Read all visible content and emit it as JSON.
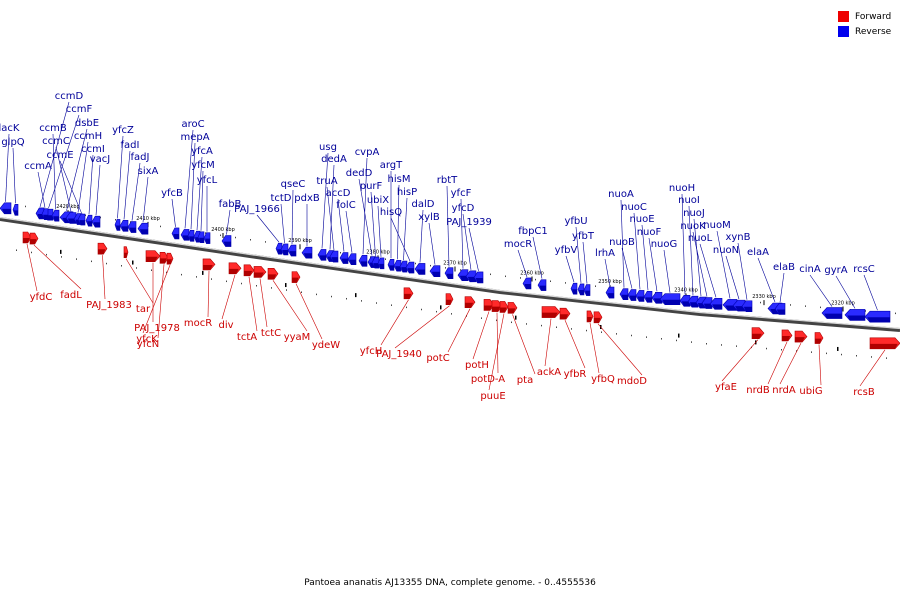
{
  "legend": {
    "forward_label": "Forward",
    "reverse_label": "Reverse",
    "forward_color": "#ee0000",
    "reverse_color": "#0000ee"
  },
  "caption": "Pantoea ananatis AJ13355 DNA, complete genome. - 0..4555536",
  "scale_ticks": [
    "2420 kbp",
    "2410 kbp",
    "2400 kbp",
    "2390 kbp",
    "2380 kbp",
    "2370 kbp",
    "2360 kbp",
    "2350 kbp",
    "2340 kbp",
    "2330 kbp",
    "2320 kbp"
  ],
  "reverse_genes": [
    "lacK",
    "glpQ",
    "ccmD",
    "ccmF",
    "ccmB",
    "dsbE",
    "ccmC",
    "ccmH",
    "ccmE",
    "ccmI",
    "ccmA",
    "vacJ",
    "yfcZ",
    "fadI",
    "fadJ",
    "sixA",
    "yfcB",
    "aroC",
    "mepA",
    "yfcA",
    "yfcM",
    "yfcL",
    "fabB",
    "PAJ_1966",
    "tctD",
    "qseC",
    "pdxB",
    "usg",
    "dedA",
    "truA",
    "accD",
    "folC",
    "cvpA",
    "dedD",
    "purF",
    "ubiX",
    "argT",
    "hisM",
    "hisP",
    "hisQ",
    "dalD",
    "xylB",
    "rbtT",
    "yfcF",
    "yfcD",
    "PAJ_1939",
    "mocR",
    "fbpC1",
    "yfbV",
    "yfbU",
    "yfbT",
    "lrhA",
    "nuoA",
    "nuoB",
    "nuoC",
    "nuoE",
    "nuoF",
    "nuoG",
    "nuoH",
    "nuoI",
    "nuoJ",
    "nuoK",
    "nuoL",
    "nuoM",
    "nuoN",
    "xynB",
    "elaA",
    "elaB",
    "cinA",
    "gyrA",
    "rcsC"
  ],
  "forward_genes": [
    "yfdC",
    "fadL",
    "PAJ_1983",
    "tar",
    "PAJ_1978",
    "yfcN",
    "yfcK",
    "mocR",
    "div",
    "tctA",
    "tctC",
    "yyaM",
    "ydeW",
    "yfcH",
    "PAJ_1940",
    "potC",
    "potH",
    "potD-A",
    "puuE",
    "pta",
    "ackA",
    "yfbR",
    "yfbQ",
    "mdoD",
    "yfaE",
    "nrdB",
    "nrdA",
    "ubiG",
    "rcsB"
  ]
}
